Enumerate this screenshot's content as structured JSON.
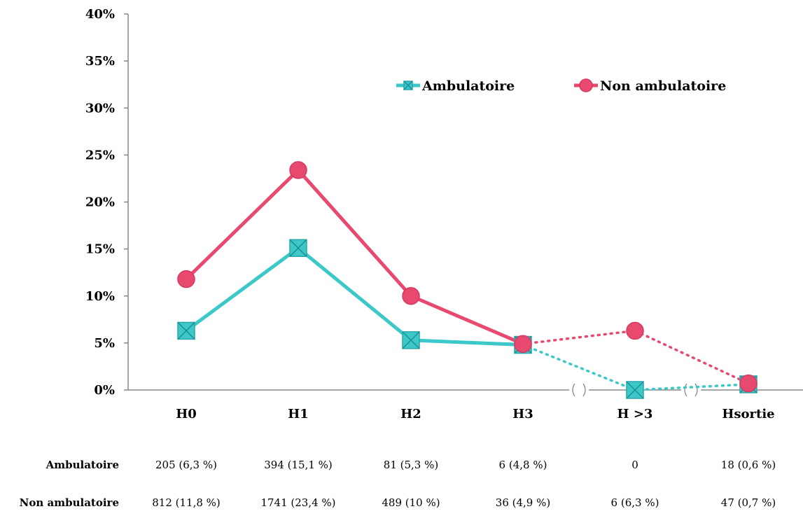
{
  "chart_data": {
    "type": "line",
    "categories": [
      "H0",
      "H1",
      "H2",
      "H3",
      "H >3",
      "Hsortie"
    ],
    "ylim": [
      0,
      40
    ],
    "y_ticks": [
      "0%",
      "5%",
      "10%",
      "15%",
      "20%",
      "25%",
      "30%",
      "35%",
      "40%"
    ],
    "legend_position": "top-right",
    "grid": false,
    "series": [
      {
        "name": "Ambulatoire",
        "color": "#3cc8c8",
        "marker": "square-x",
        "values": [
          6.3,
          15.1,
          5.3,
          4.8,
          0,
          0.6
        ],
        "table_values": [
          "205 (6,3 %)",
          "394 (15,1 %)",
          "81 (5,3 %)",
          "6 (4,8 %)",
          "0",
          "18 (0,6 %)"
        ]
      },
      {
        "name": "Non ambulatoire",
        "color": "#e8496e",
        "marker": "circle",
        "values": [
          11.8,
          23.4,
          10,
          4.9,
          6.3,
          0.7
        ],
        "table_values": [
          "812 (11,8 %)",
          "1741 (23,4 %)",
          "489 (10 %)",
          "36 (4,9 %)",
          "6 (6,3 %)",
          "47 (0,7 %)"
        ]
      }
    ],
    "dotted_from_index": 3
  }
}
